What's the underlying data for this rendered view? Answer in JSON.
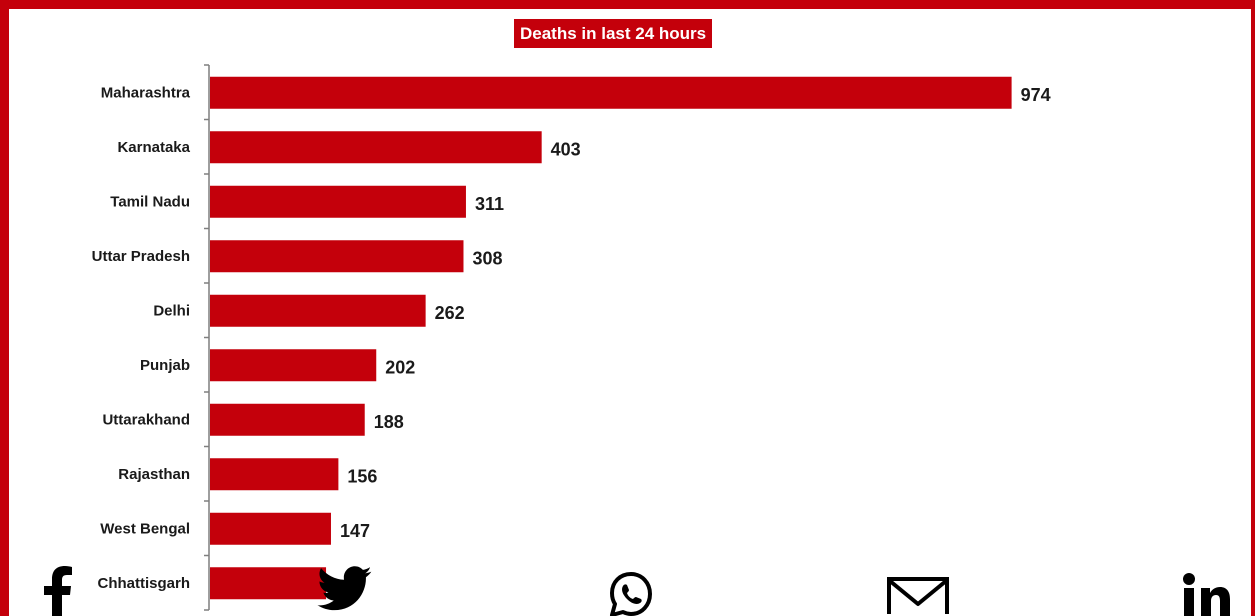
{
  "chart_data": {
    "type": "bar",
    "orientation": "horizontal",
    "title": "Deaths in last 24 hours",
    "categories": [
      "Maharashtra",
      "Karnataka",
      "Tamil Nadu",
      "Uttar Pradesh",
      "Delhi",
      "Punjab",
      "Uttarakhand",
      "Rajasthan",
      "West Bengal",
      "Chhattisgarh"
    ],
    "values": [
      974,
      403,
      311,
      308,
      262,
      202,
      188,
      156,
      147,
      141
    ],
    "value_labels": [
      "974",
      "403",
      "311",
      "308",
      "262",
      "202",
      "188",
      "156",
      "147",
      ""
    ],
    "bar_color": "#c4000b",
    "grid": false,
    "legend": "none"
  },
  "share": {
    "icons": [
      "facebook-icon",
      "twitter-icon",
      "whatsapp-icon",
      "email-icon",
      "linkedin-icon"
    ]
  },
  "colors": {
    "accent": "#c4000b",
    "icon": "#000000"
  }
}
